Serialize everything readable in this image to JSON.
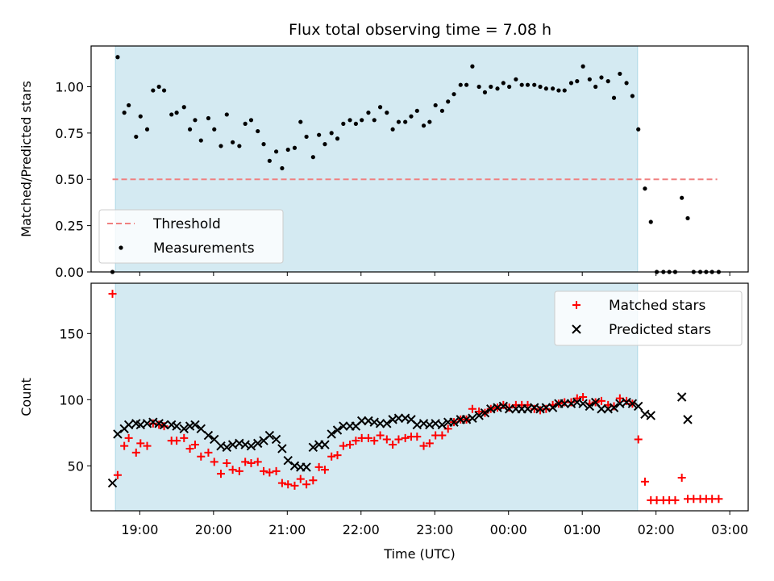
{
  "title": "Flux total observing time = 7.08 h",
  "colors": {
    "shade": "#add8e6",
    "threshold": "#f08080",
    "measurement": "#000000",
    "matched": "#ff0000",
    "predicted": "#000000"
  },
  "chart_data": [
    {
      "type": "scatter",
      "panel": "top",
      "ylabel": "Matched/Predicted stars",
      "xlim": [
        18.34,
        27.25
      ],
      "ylim": [
        0,
        1.22
      ],
      "yticks": [
        0,
        0.25,
        0.5,
        0.75,
        1.0
      ],
      "ytick_labels": [
        "0.00",
        "0.25",
        "0.50",
        "0.75",
        "1.00"
      ],
      "shaded_span": [
        18.67,
        25.75
      ],
      "threshold": {
        "name": "Threshold",
        "value": 0.5,
        "x_range": [
          18.63,
          26.83
        ]
      },
      "legend": {
        "position": "lower-left",
        "entries": [
          {
            "label": "Threshold",
            "marker": "dashed-line"
          },
          {
            "label": "Measurements",
            "marker": "dot"
          }
        ]
      },
      "series": [
        {
          "name": "Measurements",
          "x": [
            18.63,
            18.7,
            18.79,
            18.85,
            18.95,
            19.01,
            19.1,
            19.18,
            19.26,
            19.33,
            19.43,
            19.5,
            19.6,
            19.68,
            19.75,
            19.83,
            19.93,
            20.01,
            20.1,
            20.18,
            20.26,
            20.35,
            20.43,
            20.51,
            20.6,
            20.68,
            20.76,
            20.85,
            20.93,
            21.01,
            21.1,
            21.18,
            21.26,
            21.35,
            21.43,
            21.51,
            21.6,
            21.68,
            21.76,
            21.85,
            21.93,
            22.01,
            22.1,
            22.18,
            22.26,
            22.35,
            22.43,
            22.51,
            22.6,
            22.68,
            22.76,
            22.85,
            22.93,
            23.01,
            23.1,
            23.18,
            23.26,
            23.35,
            23.43,
            23.51,
            23.6,
            23.68,
            23.76,
            23.85,
            23.93,
            24.01,
            24.1,
            24.18,
            24.26,
            24.35,
            24.43,
            24.51,
            24.6,
            24.68,
            24.76,
            24.85,
            24.93,
            25.01,
            25.1,
            25.18,
            25.26,
            25.35,
            25.43,
            25.51,
            25.6,
            25.68,
            25.76,
            25.85,
            25.93,
            26.01,
            26.1,
            26.18,
            26.26,
            26.35,
            26.43,
            26.51,
            26.6,
            26.68,
            26.76,
            26.85
          ],
          "y": [
            0.0,
            1.16,
            0.86,
            0.9,
            0.73,
            0.84,
            0.77,
            0.98,
            1.0,
            0.98,
            0.85,
            0.86,
            0.89,
            0.77,
            0.82,
            0.71,
            0.83,
            0.77,
            0.68,
            0.85,
            0.7,
            0.68,
            0.8,
            0.82,
            0.76,
            0.69,
            0.6,
            0.65,
            0.56,
            0.66,
            0.67,
            0.81,
            0.73,
            0.62,
            0.74,
            0.69,
            0.75,
            0.72,
            0.8,
            0.82,
            0.8,
            0.82,
            0.86,
            0.82,
            0.89,
            0.86,
            0.77,
            0.81,
            0.81,
            0.84,
            0.87,
            0.79,
            0.81,
            0.9,
            0.87,
            0.92,
            0.96,
            1.01,
            1.01,
            1.11,
            1.0,
            0.97,
            1.0,
            0.99,
            1.02,
            1.0,
            1.04,
            1.01,
            1.01,
            1.01,
            1.0,
            0.99,
            0.99,
            0.98,
            0.98,
            1.02,
            1.03,
            1.11,
            1.04,
            1.0,
            1.05,
            1.03,
            0.94,
            1.07,
            1.02,
            0.95,
            0.77,
            0.45,
            0.27,
            0.0,
            0.0,
            0.0,
            0.0,
            0.4,
            0.29,
            0.0,
            0.0,
            0.0,
            0.0,
            0.0
          ]
        }
      ]
    },
    {
      "type": "scatter",
      "panel": "bottom",
      "xlabel": "Time (UTC)",
      "ylabel": "Count",
      "xlim": [
        18.34,
        27.25
      ],
      "ylim": [
        16,
        188
      ],
      "yticks": [
        50,
        100,
        150
      ],
      "ytick_labels": [
        "50",
        "100",
        "150"
      ],
      "xticks": [
        19,
        20,
        21,
        22,
        23,
        24,
        25,
        26,
        27
      ],
      "xtick_labels": [
        "19:00",
        "20:00",
        "21:00",
        "22:00",
        "23:00",
        "00:00",
        "01:00",
        "02:00",
        "03:00"
      ],
      "shaded_span": [
        18.67,
        25.75
      ],
      "legend": {
        "position": "upper-right",
        "entries": [
          {
            "label": "Matched stars",
            "marker": "plus"
          },
          {
            "label": "Predicted stars",
            "marker": "x"
          }
        ]
      },
      "series": [
        {
          "name": "Matched stars",
          "x": [
            18.63,
            18.7,
            18.79,
            18.85,
            18.95,
            19.01,
            19.1,
            19.18,
            19.26,
            19.33,
            19.43,
            19.5,
            19.6,
            19.68,
            19.75,
            19.83,
            19.93,
            20.01,
            20.1,
            20.18,
            20.26,
            20.35,
            20.43,
            20.51,
            20.6,
            20.68,
            20.76,
            20.85,
            20.93,
            21.01,
            21.1,
            21.18,
            21.26,
            21.35,
            21.43,
            21.51,
            21.6,
            21.68,
            21.76,
            21.85,
            21.93,
            22.01,
            22.1,
            22.18,
            22.26,
            22.35,
            22.43,
            22.51,
            22.6,
            22.68,
            22.76,
            22.85,
            22.93,
            23.01,
            23.1,
            23.18,
            23.26,
            23.35,
            23.43,
            23.51,
            23.6,
            23.68,
            23.76,
            23.85,
            23.93,
            24.01,
            24.1,
            24.18,
            24.26,
            24.35,
            24.43,
            24.51,
            24.6,
            24.68,
            24.76,
            24.85,
            24.93,
            25.01,
            25.1,
            25.18,
            25.26,
            25.35,
            25.43,
            25.51,
            25.6,
            25.68,
            25.76,
            25.85,
            25.93,
            26.01,
            26.1,
            26.18,
            26.26,
            26.35,
            26.43,
            26.51,
            26.6,
            26.68,
            26.76,
            26.85
          ],
          "y": [
            180,
            43,
            65,
            71,
            60,
            67,
            65,
            82,
            81,
            80,
            69,
            69,
            71,
            63,
            66,
            57,
            60,
            53,
            44,
            52,
            47,
            46,
            53,
            52,
            53,
            46,
            45,
            46,
            37,
            36,
            35,
            40,
            36,
            39,
            49,
            47,
            57,
            58,
            65,
            66,
            69,
            71,
            71,
            69,
            73,
            70,
            66,
            70,
            71,
            72,
            72,
            65,
            67,
            73,
            73,
            78,
            83,
            85,
            85,
            93,
            91,
            90,
            93,
            94,
            96,
            94,
            96,
            96,
            96,
            93,
            92,
            93,
            96,
            97,
            98,
            98,
            101,
            102,
            97,
            98,
            99,
            96,
            95,
            101,
            99,
            97,
            70,
            38,
            24,
            24,
            24,
            24,
            24,
            41,
            25,
            25,
            25,
            25,
            25,
            25
          ]
        },
        {
          "name": "Predicted stars",
          "x": [
            18.63,
            18.7,
            18.79,
            18.85,
            18.95,
            19.01,
            19.1,
            19.18,
            19.26,
            19.33,
            19.43,
            19.5,
            19.6,
            19.68,
            19.75,
            19.83,
            19.93,
            20.01,
            20.1,
            20.18,
            20.26,
            20.35,
            20.43,
            20.51,
            20.6,
            20.68,
            20.76,
            20.85,
            20.93,
            21.01,
            21.1,
            21.18,
            21.26,
            21.35,
            21.43,
            21.51,
            21.6,
            21.68,
            21.76,
            21.85,
            21.93,
            22.01,
            22.1,
            22.18,
            22.26,
            22.35,
            22.43,
            22.51,
            22.6,
            22.68,
            22.76,
            22.85,
            22.93,
            23.01,
            23.1,
            23.18,
            23.26,
            23.35,
            23.43,
            23.51,
            23.6,
            23.68,
            23.76,
            23.85,
            23.93,
            24.01,
            24.1,
            24.18,
            24.26,
            24.35,
            24.43,
            24.51,
            24.6,
            24.68,
            24.76,
            24.85,
            24.93,
            25.01,
            25.1,
            25.18,
            25.26,
            25.35,
            25.43,
            25.51,
            25.6,
            25.68,
            25.76,
            25.85,
            25.93,
            26.35,
            26.43
          ],
          "y": [
            37,
            74,
            78,
            81,
            82,
            81,
            82,
            83,
            82,
            81,
            81,
            80,
            78,
            80,
            81,
            78,
            73,
            70,
            65,
            64,
            66,
            67,
            66,
            65,
            67,
            69,
            73,
            70,
            63,
            54,
            50,
            49,
            49,
            64,
            66,
            66,
            74,
            77,
            80,
            80,
            80,
            84,
            84,
            83,
            82,
            82,
            85,
            86,
            86,
            85,
            81,
            82,
            81,
            82,
            81,
            83,
            83,
            85,
            85,
            86,
            88,
            90,
            93,
            94,
            95,
            93,
            93,
            93,
            93,
            94,
            93,
            94,
            94,
            97,
            97,
            97,
            98,
            97,
            95,
            98,
            93,
            93,
            94,
            97,
            98,
            97,
            95,
            89,
            88,
            102,
            85
          ]
        }
      ]
    }
  ]
}
